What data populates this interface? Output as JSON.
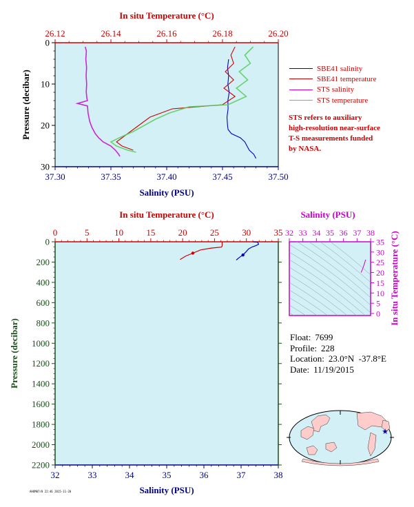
{
  "chart_data": [
    {
      "type": "line",
      "panel": "top",
      "top_axis_title": "In situ Temperature (°C)",
      "bottom_axis_title": "Salinity (PSU)",
      "left_axis_title": "Pressure (decibar)",
      "temp_ticks": [
        "26.12",
        "26.14",
        "26.16",
        "26.18",
        "26.20"
      ],
      "sal_ticks": [
        "37.30",
        "37.35",
        "37.40",
        "37.45",
        "37.50"
      ],
      "pres_ticks": [
        "0",
        "10",
        "20",
        "30"
      ],
      "xlim_salinity": [
        37.3,
        37.5
      ],
      "xlim_temperature": [
        26.12,
        26.2
      ],
      "ylim_pressure": [
        30,
        0
      ],
      "series": [
        {
          "name": "SBE41 salinity",
          "color": "#0000cc",
          "axis": "salinity",
          "points": [
            [
              37.4555,
              4
            ],
            [
              37.4545,
              6
            ],
            [
              37.4555,
              8
            ],
            [
              37.4548,
              10
            ],
            [
              37.456,
              12
            ],
            [
              37.4548,
              14
            ],
            [
              37.455,
              16
            ],
            [
              37.454,
              18
            ],
            [
              37.4545,
              20
            ],
            [
              37.455,
              21
            ],
            [
              37.458,
              22
            ],
            [
              37.466,
              23
            ],
            [
              37.47,
              24
            ],
            [
              37.472,
              25
            ],
            [
              37.474,
              26
            ],
            [
              37.478,
              27
            ],
            [
              37.48,
              28
            ]
          ]
        },
        {
          "name": "SBE41 temperature",
          "color": "#cc0000",
          "axis": "temperature",
          "points": [
            [
              26.1845,
              1
            ],
            [
              26.183,
              3
            ],
            [
              26.184,
              5
            ],
            [
              26.181,
              7
            ],
            [
              26.184,
              9
            ],
            [
              26.1805,
              11
            ],
            [
              26.1845,
              13
            ],
            [
              26.18,
              15
            ],
            [
              26.162,
              16
            ],
            [
              26.154,
              18
            ],
            [
              26.15,
              20
            ],
            [
              26.146,
              22
            ],
            [
              26.142,
              24
            ],
            [
              26.144,
              25
            ],
            [
              26.148,
              26
            ]
          ]
        },
        {
          "name": "STS salinity",
          "color": "#cc00cc",
          "axis": "salinity",
          "points": [
            [
              37.327,
              1
            ],
            [
              37.328,
              2
            ],
            [
              37.3275,
              4
            ],
            [
              37.3282,
              6
            ],
            [
              37.3278,
              8
            ],
            [
              37.3283,
              10
            ],
            [
              37.3279,
              12
            ],
            [
              37.3285,
              13.5
            ],
            [
              37.329,
              14
            ],
            [
              37.32,
              14.7
            ],
            [
              37.329,
              15.3
            ],
            [
              37.3295,
              17
            ],
            [
              37.331,
              19
            ],
            [
              37.333,
              20.5
            ],
            [
              37.336,
              22
            ],
            [
              37.339,
              23
            ],
            [
              37.343,
              24
            ],
            [
              37.35,
              25
            ],
            [
              37.354,
              26
            ],
            [
              37.357,
              27
            ],
            [
              37.358,
              27.5
            ]
          ]
        },
        {
          "name": "STS temperature",
          "color": "#55cc55",
          "axis": "temperature",
          "points": [
            [
              26.191,
              1
            ],
            [
              26.188,
              3
            ],
            [
              26.19,
              5
            ],
            [
              26.186,
              7
            ],
            [
              26.189,
              9
            ],
            [
              26.185,
              11
            ],
            [
              26.1885,
              13
            ],
            [
              26.182,
              15
            ],
            [
              26.168,
              15.5
            ],
            [
              26.161,
              17
            ],
            [
              26.156,
              18.5
            ],
            [
              26.152,
              20
            ],
            [
              26.148,
              21.5
            ],
            [
              26.143,
              23
            ],
            [
              26.14,
              24
            ],
            [
              26.142,
              25
            ],
            [
              26.146,
              26
            ],
            [
              26.149,
              26.5
            ]
          ]
        }
      ]
    },
    {
      "type": "line",
      "panel": "bottom",
      "top_axis_title": "In situ Temperature (°C)",
      "bottom_axis_title": "Salinity (PSU)",
      "left_axis_title": "Pressure (decibar)",
      "temp_ticks": [
        "0",
        "5",
        "10",
        "15",
        "20",
        "25",
        "30",
        "35"
      ],
      "sal_ticks": [
        "32",
        "33",
        "34",
        "35",
        "36",
        "37",
        "38"
      ],
      "pres_ticks": [
        "0",
        "200",
        "400",
        "600",
        "800",
        "1000",
        "1200",
        "1400",
        "1600",
        "1800",
        "2000",
        "2200"
      ],
      "xlim_salinity": [
        32,
        38
      ],
      "xlim_temperature": [
        0,
        35
      ],
      "ylim_pressure": [
        2200,
        0
      ],
      "series": [
        {
          "name": "temperature",
          "color": "#cc0000",
          "axis": "temperature",
          "points": [
            [
              26.2,
              0
            ],
            [
              26.2,
              10
            ],
            [
              26.2,
              40
            ],
            [
              26.1,
              52
            ],
            [
              24.5,
              62
            ],
            [
              22.8,
              80
            ],
            [
              21.6,
              112
            ],
            [
              20.5,
              140
            ],
            [
              19.6,
              175
            ]
          ]
        },
        {
          "name": "salinity",
          "color": "#0000cc",
          "axis": "salinity",
          "points": [
            [
              37.32,
              0
            ],
            [
              37.45,
              5
            ],
            [
              37.47,
              25
            ],
            [
              37.38,
              40
            ],
            [
              37.3,
              50
            ],
            [
              37.2,
              70
            ],
            [
              37.13,
              100
            ],
            [
              37.05,
              130
            ],
            [
              36.95,
              155
            ],
            [
              36.87,
              180
            ]
          ]
        }
      ]
    },
    {
      "type": "scatter",
      "panel": "ts-diagram",
      "top_axis_title": "Salinity (PSU)",
      "right_axis_title": "In situ Temperature (°C)",
      "sal_ticks": [
        "32",
        "33",
        "34",
        "35",
        "36",
        "37",
        "38"
      ],
      "temp_ticks": [
        "0",
        "5",
        "10",
        "15",
        "20",
        "25",
        "30",
        "35"
      ],
      "xlim_salinity": [
        32,
        38
      ],
      "ylim_temperature": [
        -1,
        35
      ],
      "points": [
        [
          37.3,
          20
        ],
        [
          37.4,
          21.5
        ],
        [
          37.5,
          23.5
        ],
        [
          37.58,
          25
        ],
        [
          37.62,
          26
        ],
        [
          37.66,
          26.2
        ]
      ]
    }
  ],
  "legend": [
    {
      "label": "SBE41 salinity",
      "color": "#0000cc"
    },
    {
      "label": "SBE41 temperature",
      "color": "#cc0000"
    },
    {
      "label": "STS salinity",
      "color": "#cc00cc"
    },
    {
      "label": "STS temperature",
      "color": "#55cc55"
    }
  ],
  "note": [
    "STS refers to auxiliary",
    "high-resolution near-surface",
    "T-S measurements funded",
    "by NASA."
  ],
  "info": {
    "float_label": "Float:",
    "float_value": "7699",
    "profile_label": "Profile:",
    "profile_value": "228",
    "location_label": "Location:",
    "location_value": "23.0°N  -37.8°E",
    "date_label": "Date:",
    "date_value": "11/19/2015"
  },
  "footer_stamp": "AHOM07/8 22:46 2015-11-20",
  "colors": {
    "plot_bg": "#d4f0f7",
    "temperature_axis": "#cc0000",
    "salinity_axis": "#0000aa",
    "pressure_axis": "#1a4d1a",
    "ts_axis": "#cc00cc"
  }
}
